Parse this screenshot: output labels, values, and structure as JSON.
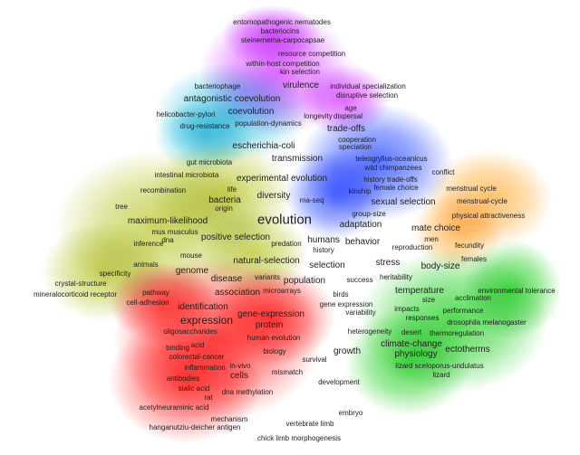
{
  "map": {
    "title": "",
    "clusters": [
      {
        "id": "red",
        "color": "#ff2020"
      },
      {
        "id": "green",
        "color": "#20d020"
      },
      {
        "id": "blue",
        "color": "#2448ff"
      },
      {
        "id": "yellow",
        "color": "#bcc832"
      },
      {
        "id": "purple",
        "color": "#d640ff"
      },
      {
        "id": "cyan",
        "color": "#38c4e0"
      },
      {
        "id": "orange",
        "color": "#ffb040"
      }
    ],
    "terms": [
      {
        "text": "entomopathogenic nematodes",
        "weight": 1
      },
      {
        "text": "bacteriocins",
        "weight": 1
      },
      {
        "text": "steinernema-carpocapsae",
        "weight": 1
      },
      {
        "text": "resource competition",
        "weight": 1
      },
      {
        "text": "within-host competition",
        "weight": 1
      },
      {
        "text": "kin selection",
        "weight": 1
      },
      {
        "text": "bacteriophage",
        "weight": 1
      },
      {
        "text": "virulence",
        "weight": 2
      },
      {
        "text": "individual specialization",
        "weight": 1
      },
      {
        "text": "disruptive selection",
        "weight": 1
      },
      {
        "text": "antagonistic coevolution",
        "weight": 2
      },
      {
        "text": "age",
        "weight": 1
      },
      {
        "text": "coevolution",
        "weight": 2
      },
      {
        "text": "helicobacter-pylori",
        "weight": 1
      },
      {
        "text": "longevity",
        "weight": 1
      },
      {
        "text": "dispersal",
        "weight": 1
      },
      {
        "text": "drug-resistance",
        "weight": 1
      },
      {
        "text": "population-dynamics",
        "weight": 1
      },
      {
        "text": "trade-offs",
        "weight": 2
      },
      {
        "text": "cooperation",
        "weight": 1
      },
      {
        "text": "escherichia-coli",
        "weight": 2
      },
      {
        "text": "speciation",
        "weight": 1
      },
      {
        "text": "transmission",
        "weight": 2
      },
      {
        "text": "teleogryllus-oceanicus",
        "weight": 1
      },
      {
        "text": "gut microbiota",
        "weight": 1
      },
      {
        "text": "wild chimpanzees",
        "weight": 1
      },
      {
        "text": "intestinal microbiota",
        "weight": 1
      },
      {
        "text": "experimental evolution",
        "weight": 2
      },
      {
        "text": "conflict",
        "weight": 1
      },
      {
        "text": "history trade-offs",
        "weight": 1
      },
      {
        "text": "female choice",
        "weight": 1
      },
      {
        "text": "recombination",
        "weight": 1
      },
      {
        "text": "life",
        "weight": 1
      },
      {
        "text": "kinship",
        "weight": 1
      },
      {
        "text": "menstrual cycle",
        "weight": 1
      },
      {
        "text": "diversity",
        "weight": 2
      },
      {
        "text": "bacteria",
        "weight": 2
      },
      {
        "text": "rna-seq",
        "weight": 1
      },
      {
        "text": "sexual selection",
        "weight": 2
      },
      {
        "text": "menstrual-cycle",
        "weight": 1
      },
      {
        "text": "tree",
        "weight": 1
      },
      {
        "text": "origin",
        "weight": 1
      },
      {
        "text": "group-size",
        "weight": 1
      },
      {
        "text": "physical attractiveness",
        "weight": 1
      },
      {
        "text": "maximum-likelihood",
        "weight": 2
      },
      {
        "text": "evolution",
        "weight": 4
      },
      {
        "text": "adaptation",
        "weight": 2
      },
      {
        "text": "mus musculus",
        "weight": 1
      },
      {
        "text": "mate choice",
        "weight": 2
      },
      {
        "text": "positive selection",
        "weight": 2
      },
      {
        "text": "humans",
        "weight": 2
      },
      {
        "text": "men",
        "weight": 1
      },
      {
        "text": "inference",
        "weight": 1
      },
      {
        "text": "dna",
        "weight": 1
      },
      {
        "text": "predation",
        "weight": 1
      },
      {
        "text": "behavior",
        "weight": 2
      },
      {
        "text": "reproduction",
        "weight": 1
      },
      {
        "text": "fecundity",
        "weight": 1
      },
      {
        "text": "history",
        "weight": 1
      },
      {
        "text": "mouse",
        "weight": 1
      },
      {
        "text": "females",
        "weight": 1
      },
      {
        "text": "natural-selection",
        "weight": 2
      },
      {
        "text": "animals",
        "weight": 1
      },
      {
        "text": "stress",
        "weight": 2
      },
      {
        "text": "selection",
        "weight": 2
      },
      {
        "text": "body-size",
        "weight": 2
      },
      {
        "text": "genome",
        "weight": 2
      },
      {
        "text": "specificity",
        "weight": 1
      },
      {
        "text": "variants",
        "weight": 1
      },
      {
        "text": "heritability",
        "weight": 1
      },
      {
        "text": "disease",
        "weight": 2
      },
      {
        "text": "population",
        "weight": 2
      },
      {
        "text": "success",
        "weight": 1
      },
      {
        "text": "crystal-structure",
        "weight": 1
      },
      {
        "text": "temperature",
        "weight": 2
      },
      {
        "text": "environmental tolerance",
        "weight": 1
      },
      {
        "text": "pathway",
        "weight": 1
      },
      {
        "text": "association",
        "weight": 2
      },
      {
        "text": "microarrays",
        "weight": 1
      },
      {
        "text": "birds",
        "weight": 1
      },
      {
        "text": "mineralocorticoid receptor",
        "weight": 1
      },
      {
        "text": "size",
        "weight": 1
      },
      {
        "text": "acclimation",
        "weight": 1
      },
      {
        "text": "cell-adhesion",
        "weight": 1
      },
      {
        "text": "gene expression",
        "weight": 1
      },
      {
        "text": "identification",
        "weight": 2
      },
      {
        "text": "impacts",
        "weight": 1
      },
      {
        "text": "performance",
        "weight": 1
      },
      {
        "text": "gene-expression",
        "weight": 2
      },
      {
        "text": "variability",
        "weight": 1
      },
      {
        "text": "expression",
        "weight": 3
      },
      {
        "text": "responses",
        "weight": 1
      },
      {
        "text": "protein",
        "weight": 2
      },
      {
        "text": "drosophila melanogaster",
        "weight": 1
      },
      {
        "text": "oligosaccharides",
        "weight": 1
      },
      {
        "text": "heterogeneity",
        "weight": 1
      },
      {
        "text": "desert",
        "weight": 1
      },
      {
        "text": "thermoregulation",
        "weight": 1
      },
      {
        "text": "human evolution",
        "weight": 1
      },
      {
        "text": "climate-change",
        "weight": 2
      },
      {
        "text": "acid",
        "weight": 1
      },
      {
        "text": "binding",
        "weight": 1
      },
      {
        "text": "growth",
        "weight": 2
      },
      {
        "text": "ectotherms",
        "weight": 2
      },
      {
        "text": "biology",
        "weight": 1
      },
      {
        "text": "colorectal-cancer",
        "weight": 1
      },
      {
        "text": "physiology",
        "weight": 2
      },
      {
        "text": "survival",
        "weight": 1
      },
      {
        "text": "in-vivo",
        "weight": 1
      },
      {
        "text": "inflammation",
        "weight": 1
      },
      {
        "text": "lizard sceloporus-undulatus",
        "weight": 1
      },
      {
        "text": "mismatch",
        "weight": 1
      },
      {
        "text": "cells",
        "weight": 2
      },
      {
        "text": "antibodies",
        "weight": 1
      },
      {
        "text": "lizard",
        "weight": 1
      },
      {
        "text": "development",
        "weight": 1
      },
      {
        "text": "sialic acid",
        "weight": 1
      },
      {
        "text": "dna methylation",
        "weight": 1
      },
      {
        "text": "rat",
        "weight": 1
      },
      {
        "text": "acetylneuraminic acid",
        "weight": 1
      },
      {
        "text": "embryo",
        "weight": 1
      },
      {
        "text": "mechanism",
        "weight": 1
      },
      {
        "text": "vertebrate limb",
        "weight": 1
      },
      {
        "text": "hanganutziu-deicher antigen",
        "weight": 1
      },
      {
        "text": "chick limb morphogenesis",
        "weight": 1
      }
    ]
  }
}
